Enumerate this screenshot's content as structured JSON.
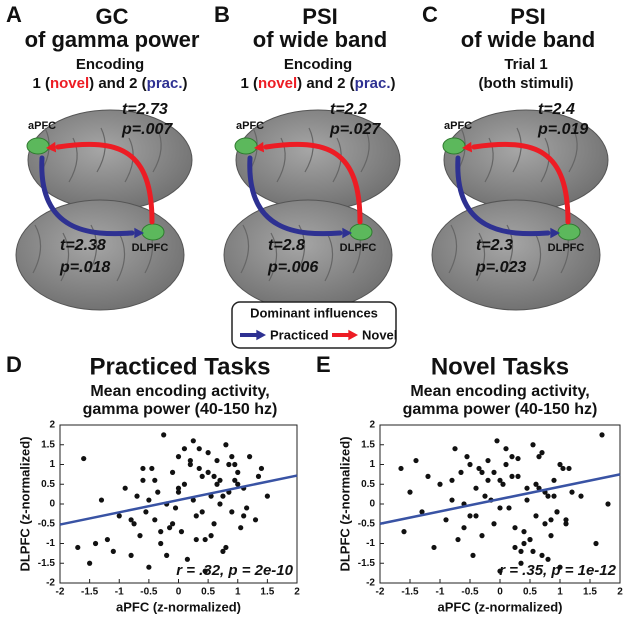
{
  "panels": [
    {
      "letter": "A",
      "title": [
        "GC",
        "of gamma power"
      ],
      "subtitle": [
        [
          {
            "text": "Encoding"
          }
        ],
        [
          {
            "text": "1 ("
          },
          {
            "text": "novel",
            "color": "#ed1c24"
          },
          {
            "text": ") and 2 ("
          },
          {
            "text": "prac.",
            "color": "#2e3192"
          },
          {
            "text": ")"
          }
        ]
      ],
      "stats_top": [
        "t=2.73",
        "p=.007"
      ],
      "stats_bottom": [
        "t=2.38",
        "p=.018"
      ],
      "region_top": "aPFC",
      "region_bottom": "DLPFC"
    },
    {
      "letter": "B",
      "title": [
        "PSI",
        "of wide band"
      ],
      "subtitle": [
        [
          {
            "text": "Encoding"
          }
        ],
        [
          {
            "text": "1 ("
          },
          {
            "text": "novel",
            "color": "#ed1c24"
          },
          {
            "text": ") and 2 ("
          },
          {
            "text": "prac.",
            "color": "#2e3192"
          },
          {
            "text": ")"
          }
        ]
      ],
      "stats_top": [
        "t=2.2",
        "p=.027"
      ],
      "stats_bottom": [
        "t=2.8",
        "p=.006"
      ],
      "region_top": "aPFC",
      "region_bottom": "DLPFC"
    },
    {
      "letter": "C",
      "title": [
        "PSI",
        "of wide band"
      ],
      "subtitle": [
        [
          {
            "text": "Trial 1"
          }
        ],
        [
          {
            "text": "(both stimuli)"
          }
        ]
      ],
      "stats_top": [
        "t=2.4",
        "p=.019"
      ],
      "stats_bottom": [
        "t=2.3",
        "p=.023"
      ],
      "region_top": "aPFC",
      "region_bottom": "DLPFC"
    }
  ],
  "legend": {
    "title": "Dominant influences",
    "items": [
      {
        "name": "Practiced",
        "color": "#2e3192"
      },
      {
        "name": "Novel",
        "color": "#ed1c24"
      }
    ]
  },
  "chart_data": [
    {
      "type": "scatter",
      "letter": "D",
      "title": "Practiced Tasks",
      "title_color": "#2e3192",
      "subtitle": [
        "Mean encoding activity,",
        "gamma power (40-150 hz)"
      ],
      "xlabel": "aPFC (z-normalized)",
      "ylabel": "DLPFC (z-normalized)",
      "annotation": "r = .32, p = 2e-10",
      "color": "#111111",
      "x": [
        -1.7,
        -1.6,
        -1.5,
        -1.4,
        -1.3,
        -1.2,
        -1.1,
        -1.0,
        -0.9,
        -0.8,
        -0.75,
        -0.7,
        -0.65,
        -0.6,
        -0.55,
        -0.5,
        -0.45,
        -0.4,
        -0.35,
        -0.3,
        -0.25,
        -0.2,
        -0.15,
        -0.1,
        -0.05,
        0,
        0.05,
        0.1,
        0.15,
        0.2,
        0.25,
        0.3,
        0.35,
        0.4,
        0.45,
        0.5,
        0.55,
        0.6,
        0.65,
        0.7,
        0.75,
        0.8,
        0.85,
        0.9,
        0.95,
        1.0,
        1.05,
        1.1,
        1.2,
        1.3,
        1.4,
        1.5,
        -0.6,
        -0.3,
        0,
        0.2,
        0.4,
        0.6,
        0.8,
        1.0,
        -0.8,
        -0.4,
        0.1,
        0.3,
        0.5,
        0.7,
        0.9,
        1.1,
        -0.2,
        0.0,
        0.35,
        0.55,
        0.75,
        0.95,
        -0.5,
        -0.1,
        0.25,
        0.45,
        0.65,
        0.85,
        1.15,
        1.35
      ],
      "y": [
        -1.1,
        1.15,
        -1.5,
        -1.0,
        0.1,
        -0.9,
        -1.2,
        -0.3,
        0.4,
        -1.3,
        -0.5,
        0.2,
        -0.8,
        0.6,
        -0.2,
        -1.6,
        0.9,
        -0.4,
        0.3,
        -1.0,
        1.75,
        0.0,
        -0.6,
        0.8,
        -0.1,
        1.2,
        -0.7,
        0.5,
        -1.4,
        1.0,
        0.1,
        -0.3,
        1.4,
        0.7,
        -0.9,
        1.3,
        0.2,
        -0.5,
        1.1,
        0.6,
        -1.2,
        1.5,
        0.3,
        -0.2,
        1.0,
        0.8,
        -0.6,
        0.4,
        1.2,
        -0.4,
        0.9,
        0.2,
        0.9,
        -0.7,
        0.3,
        1.1,
        -0.2,
        0.7,
        -1.1,
        0.5,
        -0.4,
        0.6,
        1.4,
        -0.9,
        0.8,
        0.0,
        1.2,
        -0.3,
        -1.3,
        0.4,
        0.9,
        -0.8,
        0.2,
        0.6,
        0.1,
        -0.5,
        1.6,
        -1.7,
        0.5,
        1.0,
        -0.1,
        0.7
      ],
      "fit": {
        "x": [
          -2,
          2
        ],
        "y": [
          -0.52,
          0.72
        ],
        "color": "#3953a4"
      },
      "xlim": [
        -2,
        2
      ],
      "ylim": [
        -2,
        2
      ],
      "xticks": [
        -2,
        -1.5,
        -1,
        -0.5,
        0,
        0.5,
        1,
        1.5,
        2
      ],
      "yticks": [
        -2,
        -1.5,
        -1,
        -0.5,
        0,
        0.5,
        1,
        1.5,
        2
      ]
    },
    {
      "type": "scatter",
      "letter": "E",
      "title": "Novel Tasks",
      "title_color": "#ed1c24",
      "subtitle": [
        "Mean encoding activity,",
        "gamma power (40-150 hz)"
      ],
      "xlabel": "aPFC (z-normalized)",
      "ylabel": "DLPFC (z-normalized)",
      "annotation": "r = .35, p = 1e-12",
      "color": "#111111",
      "x": [
        -1.65,
        -1.6,
        -1.5,
        -1.4,
        -1.3,
        -1.2,
        -1.1,
        -1.0,
        -0.9,
        -0.8,
        -0.75,
        -0.7,
        -0.65,
        -0.6,
        -0.55,
        -0.5,
        -0.45,
        -0.4,
        -0.35,
        -0.3,
        -0.25,
        -0.2,
        -0.15,
        -0.1,
        -0.05,
        0,
        0.05,
        0.1,
        0.15,
        0.2,
        0.25,
        0.3,
        0.35,
        0.4,
        0.45,
        0.5,
        0.55,
        0.6,
        0.65,
        0.7,
        0.75,
        0.8,
        0.85,
        0.9,
        0.95,
        1.0,
        1.05,
        1.1,
        1.2,
        1.6,
        1.7,
        1.8,
        -0.6,
        -0.3,
        0,
        0.2,
        0.4,
        0.6,
        0.8,
        1.0,
        -0.8,
        -0.4,
        0.1,
        0.3,
        0.5,
        0.7,
        0.9,
        1.1,
        -0.2,
        0.0,
        0.35,
        0.55,
        0.75,
        0.95,
        -0.5,
        -0.1,
        0.25,
        0.45,
        0.65,
        0.85,
        1.15,
        1.35
      ],
      "y": [
        0.9,
        -0.7,
        0.3,
        1.1,
        -0.2,
        0.7,
        -1.1,
        0.5,
        -0.4,
        0.6,
        1.4,
        -0.9,
        0.8,
        0.0,
        1.2,
        -0.3,
        -1.3,
        0.4,
        0.9,
        -0.8,
        0.2,
        0.6,
        0.1,
        -0.5,
        1.6,
        -1.7,
        0.5,
        1.0,
        -0.1,
        0.7,
        -1.1,
        1.15,
        -1.5,
        -1.0,
        0.1,
        -0.9,
        -1.2,
        -0.3,
        0.4,
        -1.3,
        -0.5,
        0.2,
        -0.8,
        0.6,
        -0.2,
        -1.6,
        0.9,
        -0.4,
        0.3,
        -1.0,
        1.75,
        0.0,
        -0.6,
        0.8,
        -0.1,
        1.2,
        -0.7,
        0.5,
        -1.4,
        1.0,
        0.1,
        -0.3,
        1.4,
        0.7,
        -0.9,
        1.3,
        0.2,
        -0.5,
        1.1,
        0.6,
        -1.2,
        1.5,
        0.3,
        -0.2,
        1.0,
        0.8,
        -0.6,
        0.4,
        1.2,
        -0.4,
        0.9,
        0.2
      ],
      "fit": {
        "x": [
          -2,
          2
        ],
        "y": [
          -0.5,
          0.75
        ],
        "color": "#3953a4"
      },
      "xlim": [
        -2,
        2
      ],
      "ylim": [
        -2,
        2
      ],
      "xticks": [
        -2,
        -1.5,
        -1,
        -0.5,
        0,
        0.5,
        1,
        1.5,
        2
      ],
      "yticks": [
        -2,
        -1.5,
        -1,
        -0.5,
        0,
        0.5,
        1,
        1.5,
        2
      ]
    }
  ]
}
